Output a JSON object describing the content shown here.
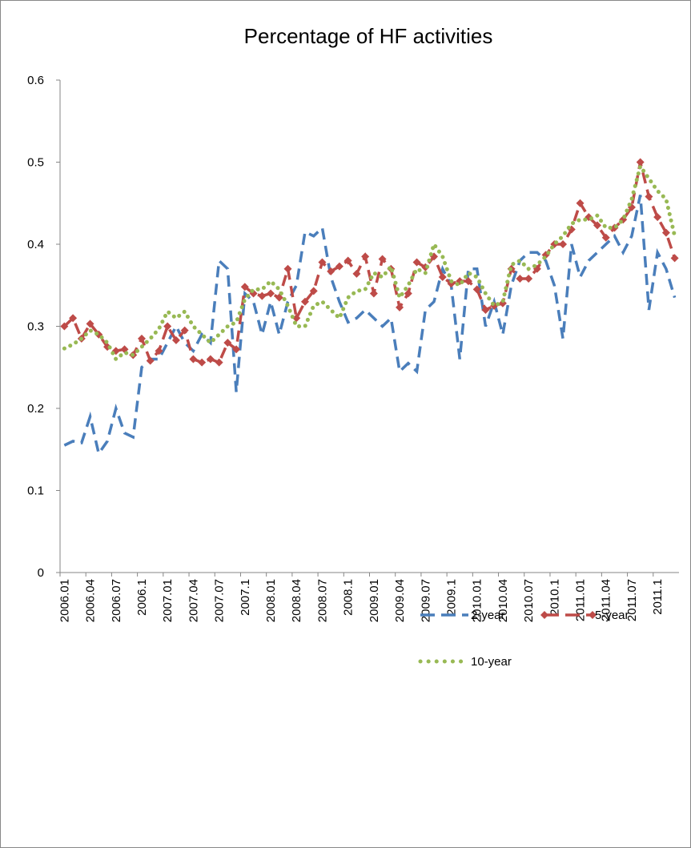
{
  "chart_data": {
    "type": "line",
    "title": "Percentage of HF activities",
    "categories": [
      "2006.01",
      null,
      null,
      "2006.04",
      null,
      null,
      "2006.07",
      null,
      null,
      "2006.1",
      null,
      null,
      "2007.01",
      null,
      null,
      "2007.04",
      null,
      null,
      "2007.07",
      null,
      null,
      "2007.1",
      null,
      null,
      "2008.01",
      null,
      null,
      "2008.04",
      null,
      null,
      "2008.07",
      null,
      null,
      "2008.1",
      null,
      null,
      "2009.01",
      null,
      null,
      "2009.04",
      null,
      null,
      "2009.07",
      null,
      null,
      "2009.1",
      null,
      null,
      "2010.01",
      null,
      null,
      "2010.04",
      null,
      null,
      "2010.07",
      null,
      null,
      "2010.1",
      null,
      null,
      "2011.01",
      null,
      null,
      "2011.04",
      null,
      null,
      "2011.07",
      null,
      null,
      "2011.1",
      null,
      null
    ],
    "series": [
      {
        "name": "2-year",
        "color": "#4a7ebb",
        "style": "dashed",
        "values": [
          0.155,
          0.16,
          0.158,
          0.19,
          0.145,
          0.16,
          0.2,
          0.17,
          0.165,
          0.25,
          0.26,
          0.26,
          0.28,
          0.3,
          0.28,
          0.27,
          0.29,
          0.28,
          0.38,
          0.37,
          0.22,
          0.34,
          0.33,
          0.29,
          0.33,
          0.29,
          0.33,
          0.35,
          0.415,
          0.41,
          0.42,
          0.36,
          0.33,
          0.305,
          0.31,
          0.32,
          0.31,
          0.3,
          0.31,
          0.245,
          0.255,
          0.245,
          0.32,
          0.33,
          0.37,
          0.35,
          0.26,
          0.37,
          0.37,
          0.3,
          0.33,
          0.29,
          0.35,
          0.38,
          0.39,
          0.39,
          0.38,
          0.35,
          0.285,
          0.4,
          0.36,
          0.38,
          0.39,
          0.4,
          0.41,
          0.39,
          0.41,
          0.46,
          0.32,
          0.39,
          0.37,
          0.335
        ]
      },
      {
        "name": "5-year",
        "color": "#be4b48",
        "style": "dashed-diamond",
        "values": [
          0.3,
          0.31,
          0.285,
          0.303,
          0.29,
          0.275,
          0.27,
          0.272,
          0.265,
          0.285,
          0.258,
          0.27,
          0.3,
          0.283,
          0.295,
          0.26,
          0.256,
          0.26,
          0.256,
          0.28,
          0.272,
          0.348,
          0.34,
          0.337,
          0.34,
          0.335,
          0.37,
          0.31,
          0.33,
          0.343,
          0.378,
          0.367,
          0.373,
          0.38,
          0.364,
          0.385,
          0.34,
          0.382,
          0.37,
          0.323,
          0.34,
          0.378,
          0.372,
          0.385,
          0.36,
          0.352,
          0.355,
          0.355,
          0.345,
          0.32,
          0.325,
          0.328,
          0.37,
          0.358,
          0.358,
          0.37,
          0.387,
          0.4,
          0.4,
          0.418,
          0.45,
          0.433,
          0.423,
          0.408,
          0.42,
          0.43,
          0.445,
          0.5,
          0.458,
          0.433,
          0.414,
          0.383
        ]
      },
      {
        "name": "10-year",
        "color": "#98b954",
        "style": "dotted",
        "values": [
          0.273,
          0.278,
          0.285,
          0.295,
          0.29,
          0.28,
          0.26,
          0.268,
          0.265,
          0.275,
          0.285,
          0.297,
          0.318,
          0.31,
          0.318,
          0.3,
          0.29,
          0.28,
          0.29,
          0.3,
          0.305,
          0.333,
          0.345,
          0.345,
          0.355,
          0.345,
          0.325,
          0.3,
          0.3,
          0.325,
          0.33,
          0.32,
          0.31,
          0.335,
          0.343,
          0.345,
          0.365,
          0.36,
          0.373,
          0.335,
          0.35,
          0.37,
          0.365,
          0.4,
          0.385,
          0.355,
          0.35,
          0.365,
          0.36,
          0.34,
          0.325,
          0.33,
          0.375,
          0.38,
          0.37,
          0.375,
          0.385,
          0.4,
          0.41,
          0.425,
          0.43,
          0.43,
          0.435,
          0.42,
          0.42,
          0.43,
          0.455,
          0.495,
          0.48,
          0.465,
          0.455,
          0.41
        ]
      }
    ],
    "ylim": [
      0,
      0.6
    ],
    "yticks": [
      0,
      0.1,
      0.2,
      0.3,
      0.4,
      0.5,
      0.6
    ],
    "grid": false,
    "legend": "right"
  }
}
